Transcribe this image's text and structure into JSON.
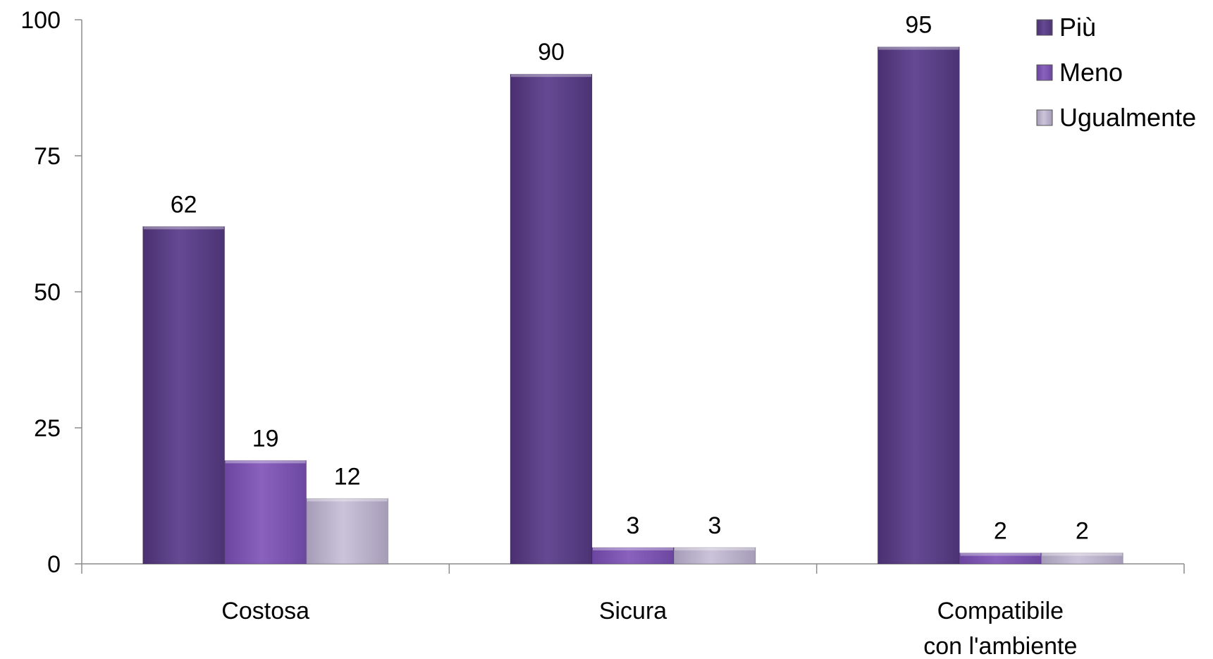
{
  "chart_data": {
    "type": "bar",
    "title": "",
    "xlabel": "",
    "ylabel": "",
    "ylim": [
      0,
      100
    ],
    "yticks": [
      0,
      25,
      50,
      75,
      100
    ],
    "categories": [
      [
        "Costosa"
      ],
      [
        "Sicura"
      ],
      [
        "Compatibile",
        "con l'ambiente"
      ]
    ],
    "series": [
      {
        "name": "Più",
        "values": [
          62,
          90,
          95
        ],
        "color": "#5b3f86"
      },
      {
        "name": "Meno",
        "values": [
          19,
          3,
          2
        ],
        "color": "#7a55a8"
      },
      {
        "name": "Ugualmente",
        "values": [
          12,
          3,
          2
        ],
        "color": "#b9b0c9"
      }
    ],
    "legend_position": "top-right",
    "grid": false,
    "data_labels": true
  }
}
